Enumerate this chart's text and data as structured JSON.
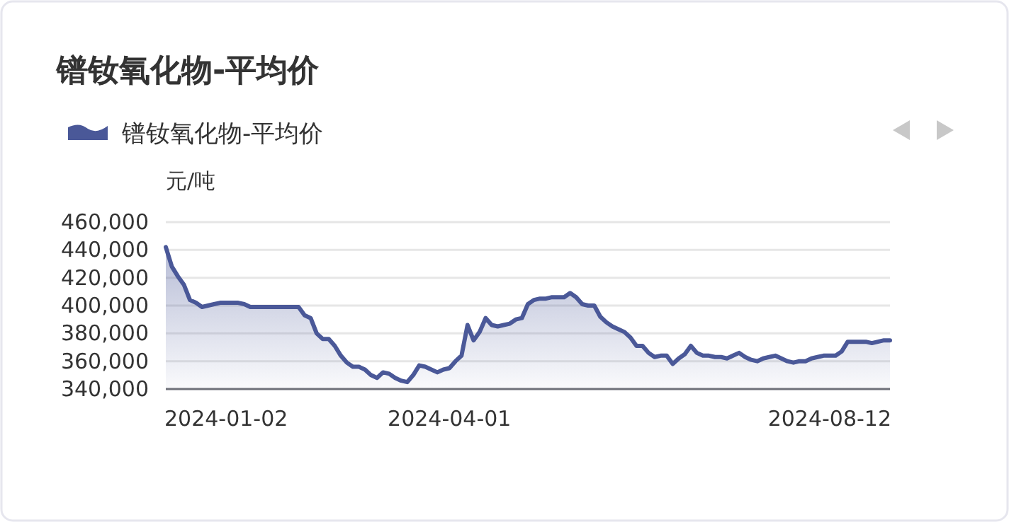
{
  "chart_data": {
    "type": "area",
    "title": "镨钕氧化物-平均价",
    "ylabel": "元/吨",
    "categories": [
      null,
      null,
      null,
      null,
      null,
      null,
      null,
      null,
      null,
      null,
      "2024-01-02",
      null,
      null,
      null,
      null,
      null,
      null,
      null,
      null,
      null,
      null,
      null,
      null,
      null,
      null,
      null,
      null,
      null,
      null,
      null,
      null,
      null,
      null,
      null,
      null,
      null,
      null,
      null,
      null,
      null,
      null,
      null,
      null,
      null,
      null,
      null,
      null,
      "2024-04-01",
      null,
      null,
      null,
      null,
      null,
      null,
      null,
      null,
      null,
      null,
      null,
      null,
      null,
      null,
      null,
      null,
      null,
      null,
      null,
      null,
      null,
      null,
      null,
      null,
      null,
      null,
      null,
      null,
      null,
      null,
      null,
      null,
      null,
      null,
      null,
      null,
      null,
      null,
      null,
      null,
      null,
      null,
      null,
      null,
      null,
      null,
      null,
      null,
      null,
      null,
      null,
      null,
      null,
      null,
      null,
      null,
      null,
      null,
      null,
      null,
      null,
      null,
      "2024-08-12",
      null,
      null,
      null,
      null,
      null,
      null,
      null,
      null,
      null,
      null
    ],
    "series": [
      {
        "name": "镨钕氧化物-平均价",
        "color": "#4a5898",
        "values": [
          442000,
          428000,
          421000,
          415000,
          404000,
          402000,
          399000,
          400000,
          401000,
          402000,
          402000,
          402000,
          402000,
          401000,
          399000,
          399000,
          399000,
          399000,
          399000,
          399000,
          399000,
          399000,
          399000,
          393000,
          391000,
          380000,
          376000,
          376000,
          371000,
          364000,
          359000,
          356000,
          356000,
          354000,
          350000,
          348000,
          352000,
          351000,
          348000,
          346000,
          345000,
          350000,
          357000,
          356000,
          354000,
          352000,
          354000,
          355000,
          360000,
          364000,
          386000,
          375000,
          381000,
          391000,
          386000,
          385000,
          386000,
          387000,
          390000,
          391000,
          401000,
          404000,
          405000,
          405000,
          406000,
          406000,
          406000,
          409000,
          406000,
          401000,
          400000,
          400000,
          392000,
          388000,
          385000,
          383000,
          381000,
          377000,
          371000,
          371000,
          366000,
          363000,
          364000,
          364000,
          358000,
          362000,
          365000,
          371000,
          366000,
          364000,
          364000,
          363000,
          363000,
          362000,
          364000,
          366000,
          363000,
          361000,
          360000,
          362000,
          363000,
          364000,
          362000,
          360000,
          359000,
          360000,
          360000,
          362000,
          363000,
          364000,
          364000,
          364000,
          367000,
          374000,
          374000,
          374000,
          374000,
          373000,
          374000,
          375000,
          375000
        ]
      }
    ],
    "ylim": [
      340000,
      460000
    ],
    "yticks": [
      {
        "value": 340000,
        "label": "340,000"
      },
      {
        "value": 360000,
        "label": "360,000"
      },
      {
        "value": 380000,
        "label": "380,000"
      },
      {
        "value": 400000,
        "label": "400,000"
      },
      {
        "value": 420000,
        "label": "420,000"
      },
      {
        "value": 440000,
        "label": "440,000"
      },
      {
        "value": 460000,
        "label": "460,000"
      }
    ],
    "grid": "y",
    "legend": "top left"
  }
}
